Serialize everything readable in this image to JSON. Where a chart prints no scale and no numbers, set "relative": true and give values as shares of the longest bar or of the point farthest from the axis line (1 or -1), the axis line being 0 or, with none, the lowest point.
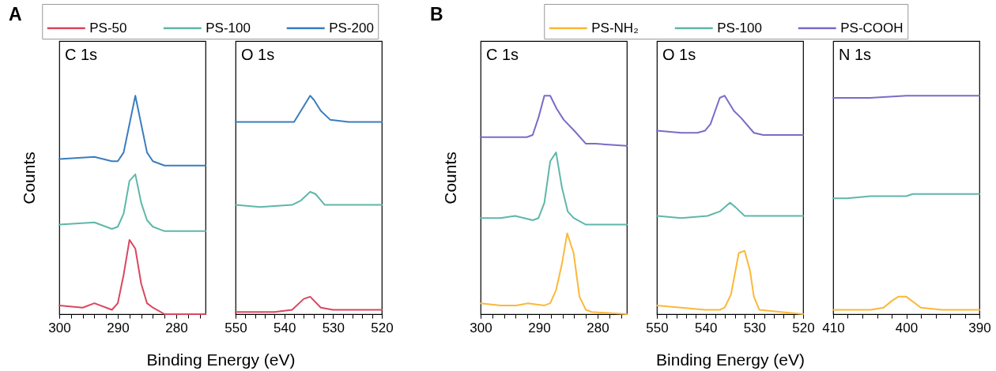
{
  "chart_data": [
    {
      "type": "line",
      "title": "C 1s",
      "annotations": [
        "A"
      ],
      "xlabel": "Binding Energy (eV)",
      "ylabel": "Counts",
      "legend": "top",
      "relative": true,
      "xlim": [
        300,
        275
      ],
      "xticks": [
        300,
        {
          "value": 298,
          "label": null
        },
        {
          "value": 296,
          "label": null
        },
        {
          "value": 294,
          "label": null
        },
        {
          "value": 292,
          "label": null
        },
        290,
        {
          "value": 288,
          "label": null
        },
        {
          "value": 286,
          "label": null
        },
        {
          "value": 284,
          "label": null
        },
        {
          "value": 282,
          "label": null
        },
        280,
        {
          "value": 278,
          "label": null
        },
        {
          "value": 276,
          "label": null
        }
      ],
      "series": [
        {
          "name": "PS-50",
          "color": "#d8475f",
          "x": [
            300,
            296,
            294,
            291,
            290,
            289,
            288,
            287,
            286,
            285,
            284,
            282,
            275
          ],
          "values": [
            0.04,
            0.03,
            0.05,
            0.02,
            0.05,
            0.18,
            0.34,
            0.3,
            0.14,
            0.05,
            0.03,
            0.0,
            0
          ]
        },
        {
          "name": "PS-100",
          "color": "#5fb7aa",
          "x": [
            300,
            294,
            291,
            290,
            289,
            288,
            287,
            286,
            285,
            284,
            282,
            275
          ],
          "values": [
            0.41,
            0.42,
            0.39,
            0.4,
            0.46,
            0.61,
            0.64,
            0.51,
            0.43,
            0.4,
            0.38,
            0.38
          ]
        },
        {
          "name": "PS-200",
          "color": "#3a7dbf",
          "x": [
            300,
            294,
            291,
            290,
            289,
            287,
            285,
            284,
            282,
            275
          ],
          "values": [
            0.71,
            0.72,
            0.7,
            0.7,
            0.74,
            1,
            0.74,
            0.7,
            0.68,
            0.68
          ]
        }
      ]
    },
    {
      "type": "line",
      "title": "O 1s",
      "relative": true,
      "xlim": [
        550,
        520
      ],
      "xticks": [
        550,
        {
          "value": 548,
          "label": null
        },
        {
          "value": 546,
          "label": null
        },
        {
          "value": 544,
          "label": null
        },
        {
          "value": 542,
          "label": null
        },
        540,
        {
          "value": 538,
          "label": null
        },
        {
          "value": 536,
          "label": null
        },
        {
          "value": 534,
          "label": null
        },
        {
          "value": 532,
          "label": null
        },
        530,
        {
          "value": 528,
          "label": null
        },
        {
          "value": 526,
          "label": null
        },
        {
          "value": 524,
          "label": null
        },
        {
          "value": 522,
          "label": null
        },
        520
      ],
      "series": [
        {
          "color": "#d8475f",
          "x": [
            550,
            542,
            538.4,
            536,
            534.7,
            532.5,
            530,
            520
          ],
          "values": [
            0.01,
            0.01,
            0.02,
            0.07,
            0.08,
            0.03,
            0.02,
            0.02
          ]
        },
        {
          "color": "#5fb7aa",
          "x": [
            550,
            545,
            538.4,
            536.6,
            534.7,
            533.6,
            531.7,
            526.8,
            525.7,
            520
          ],
          "values": [
            0.5,
            0.49,
            0.5,
            0.52,
            0.56,
            0.55,
            0.5,
            0.5,
            0.5,
            0.5
          ]
        },
        {
          "color": "#3a7dbf",
          "x": [
            550,
            543.2,
            538,
            536.6,
            534.7,
            533.9,
            532.5,
            530.6,
            526.8,
            520
          ],
          "values": [
            0.88,
            0.88,
            0.88,
            0.93,
            1,
            0.98,
            0.93,
            0.89,
            0.88,
            0.88
          ]
        }
      ]
    },
    {
      "type": "line",
      "title": "C 1s",
      "annotations": [
        "B"
      ],
      "xlabel": "Binding Energy (eV)",
      "ylabel": "Counts",
      "legend": "top",
      "relative": true,
      "xlim": [
        300,
        275
      ],
      "xticks": [
        300,
        {
          "value": 298,
          "label": null
        },
        {
          "value": 296,
          "label": null
        },
        {
          "value": 294,
          "label": null
        },
        {
          "value": 292,
          "label": null
        },
        290,
        {
          "value": 288,
          "label": null
        },
        {
          "value": 286,
          "label": null
        },
        {
          "value": 284,
          "label": null
        },
        {
          "value": 282,
          "label": null
        },
        280,
        {
          "value": 278,
          "label": null
        },
        {
          "value": 276,
          "label": null
        }
      ],
      "series": [
        {
          "name": "PS-NH₂",
          "color": "#fbb83a",
          "x": [
            300,
            296.6,
            293.9,
            291.9,
            289.1,
            288.1,
            287.1,
            286.1,
            285.2,
            284.1,
            283.1,
            282,
            281,
            275
          ],
          "values": [
            0.05,
            0.04,
            0.04,
            0.05,
            0.04,
            0.05,
            0.11,
            0.23,
            0.37,
            0.28,
            0.08,
            0.02,
            0.01,
            0
          ]
        },
        {
          "name": "PS-100",
          "color": "#5fb7aa",
          "x": [
            300,
            296.6,
            294.1,
            291.1,
            290.1,
            289.1,
            288.1,
            287.1,
            286.1,
            285.1,
            284.1,
            282,
            275
          ],
          "values": [
            0.44,
            0.44,
            0.45,
            0.43,
            0.44,
            0.51,
            0.7,
            0.74,
            0.58,
            0.47,
            0.44,
            0.41,
            0.41
          ]
        },
        {
          "name": "PS-COOH",
          "color": "#7a6cc7",
          "x": [
            300,
            298.2,
            295.3,
            292.1,
            291.1,
            290.1,
            289.1,
            288.1,
            287,
            285.8,
            284,
            282,
            280.4,
            275
          ],
          "values": [
            0.81,
            0.81,
            0.81,
            0.81,
            0.82,
            0.9,
            1,
            1.0,
            0.94,
            0.89,
            0.84,
            0.78,
            0.78,
            0.77
          ]
        }
      ]
    },
    {
      "type": "line",
      "title": "O 1s",
      "relative": true,
      "xlim": [
        550,
        520
      ],
      "xticks": [
        550,
        {
          "value": 548,
          "label": null
        },
        {
          "value": 546,
          "label": null
        },
        {
          "value": 544,
          "label": null
        },
        {
          "value": 542,
          "label": null
        },
        540,
        {
          "value": 538,
          "label": null
        },
        {
          "value": 536,
          "label": null
        },
        {
          "value": 534,
          "label": null
        },
        {
          "value": 532,
          "label": null
        },
        530,
        {
          "value": 528,
          "label": null
        },
        {
          "value": 526,
          "label": null
        },
        {
          "value": 524,
          "label": null
        },
        {
          "value": 522,
          "label": null
        },
        520
      ],
      "series": [
        {
          "color": "#fbb83a",
          "x": [
            550,
            545,
            540.1,
            537.1,
            536.1,
            534.8,
            533.2,
            532,
            530.9,
            530.1,
            529,
            520
          ],
          "values": [
            0.04,
            0.03,
            0.02,
            0.02,
            0.03,
            0.09,
            0.28,
            0.29,
            0.2,
            0.08,
            0.02,
            0
          ]
        },
        {
          "color": "#5fb7aa",
          "x": [
            550,
            545,
            539.6,
            537.1,
            535,
            533.9,
            532,
            527.1,
            520
          ],
          "values": [
            0.45,
            0.44,
            0.45,
            0.47,
            0.51,
            0.49,
            0.45,
            0.45,
            0.45
          ]
        },
        {
          "color": "#7a6cc7",
          "x": [
            550,
            545,
            541.7,
            540.1,
            539,
            537.1,
            536.1,
            534.2,
            532.8,
            530.1,
            528.2,
            520
          ],
          "values": [
            0.84,
            0.83,
            0.83,
            0.84,
            0.87,
            0.99,
            1,
            0.93,
            0.9,
            0.83,
            0.82,
            0.82
          ]
        }
      ]
    },
    {
      "type": "line",
      "title": "N 1s",
      "relative": true,
      "xlim": [
        410,
        390
      ],
      "xticks": [
        410,
        {
          "value": 408,
          "label": null
        },
        {
          "value": 406,
          "label": null
        },
        {
          "value": 404,
          "label": null
        },
        {
          "value": 402,
          "label": null
        },
        400,
        {
          "value": 398,
          "label": null
        },
        {
          "value": 396,
          "label": null
        },
        {
          "value": 394,
          "label": null
        },
        {
          "value": 392,
          "label": null
        },
        390
      ],
      "series": [
        {
          "color": "#fbb83a",
          "x": [
            410,
            404.9,
            403.1,
            402,
            401.1,
            400,
            398,
            395.1,
            393,
            390
          ],
          "values": [
            0.02,
            0.02,
            0.03,
            0.06,
            0.08,
            0.08,
            0.03,
            0.02,
            0.02,
            0.02
          ]
        },
        {
          "color": "#5fb7aa",
          "x": [
            410,
            408.1,
            404.9,
            400,
            399.1,
            390
          ],
          "values": [
            0.53,
            0.53,
            0.54,
            0.54,
            0.55,
            0.55
          ]
        },
        {
          "color": "#7a6cc7",
          "x": [
            410,
            405,
            400,
            395,
            390
          ],
          "values": [
            0.99,
            0.99,
            1,
            1,
            1
          ]
        }
      ]
    }
  ]
}
